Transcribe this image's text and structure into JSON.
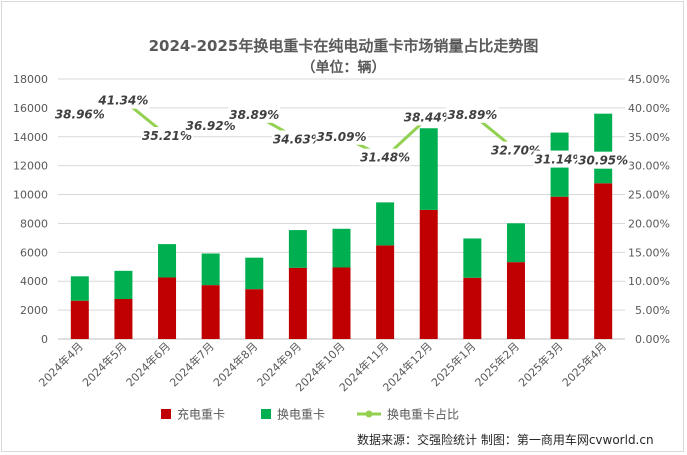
{
  "title": "2024-2025年换电重卡在纯电动重卡市场销量占比走势图",
  "subtitle": "（单位：辆）",
  "source": "数据来源：交强险统计  制图：第一商用车网cvworld.cn",
  "colors": {
    "charging": "#c00000",
    "swap": "#00b050",
    "ratio": "#92d050"
  },
  "chart_data": {
    "type": "bar",
    "stacked": true,
    "categories": [
      "2024年4月",
      "2024年5月",
      "2024年6月",
      "2024年7月",
      "2024年8月",
      "2024年9月",
      "2024年10月",
      "2024年11月",
      "2024年12月",
      "2025年1月",
      "2025年2月",
      "2025年3月",
      "2025年4月"
    ],
    "series": [
      {
        "name": "充电重卡",
        "type": "bar",
        "axis": "left",
        "values": [
          2650,
          2770,
          4260,
          3730,
          3450,
          4930,
          4950,
          6480,
          8940,
          4240,
          5320,
          9850,
          10780
        ]
      },
      {
        "name": "换电重卡",
        "type": "bar",
        "axis": "left",
        "values": [
          1690,
          1950,
          2310,
          2190,
          2180,
          2610,
          2680,
          2980,
          5650,
          2720,
          2690,
          4440,
          4820
        ]
      },
      {
        "name": "换电重卡占比",
        "type": "line",
        "axis": "right",
        "values": [
          38.96,
          41.34,
          35.21,
          36.92,
          38.89,
          34.63,
          35.09,
          31.48,
          38.44,
          38.89,
          32.7,
          31.14,
          30.95
        ],
        "labels": [
          "38.96%",
          "41.34%",
          "35.21%",
          "36.92%",
          "38.89%",
          "34.63%",
          "35.09%",
          "31.48%",
          "38.44%",
          "38.89%",
          "32.70%",
          "31.14%",
          "30.95%"
        ]
      }
    ],
    "yleft": {
      "min": 0,
      "max": 18000,
      "ticks": [
        "0",
        "2000",
        "4000",
        "6000",
        "8000",
        "10000",
        "12000",
        "14000",
        "16000",
        "18000"
      ]
    },
    "yright": {
      "min": 0,
      "max": 45,
      "ticks": [
        "0.00%",
        "5.00%",
        "10.00%",
        "15.00%",
        "20.00%",
        "25.00%",
        "30.00%",
        "35.00%",
        "40.00%",
        "45.00%"
      ]
    },
    "legend": {
      "position": "bottom",
      "entries": [
        "充电重卡",
        "换电重卡",
        "换电重卡占比"
      ]
    },
    "grid": true
  }
}
